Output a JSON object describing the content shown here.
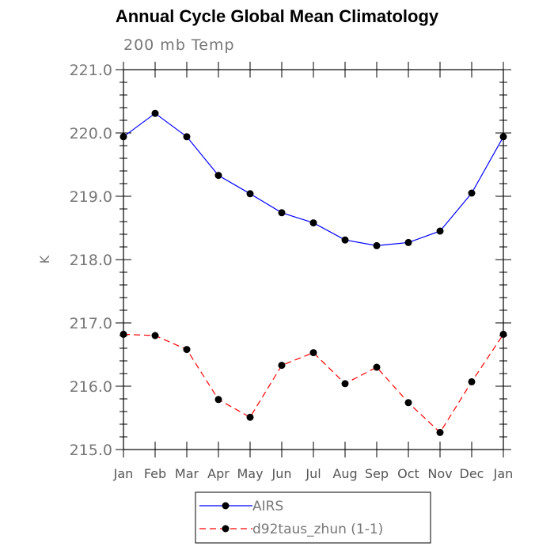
{
  "chart_data": {
    "type": "line",
    "title": "Annual Cycle Global Mean Climatology",
    "subtitle": "200 mb Temp",
    "xlabel": "",
    "ylabel": "K",
    "categories": [
      "Jan",
      "Feb",
      "Mar",
      "Apr",
      "May",
      "Jun",
      "Jul",
      "Aug",
      "Sep",
      "Oct",
      "Nov",
      "Dec",
      "Jan"
    ],
    "ylim": [
      215.0,
      221.0
    ],
    "yticks": [
      "215.0",
      "216.0",
      "217.0",
      "218.0",
      "219.0",
      "220.0",
      "221.0"
    ],
    "grid": false,
    "legend_position": "bottom-center",
    "series": [
      {
        "name": "AIRS",
        "color": "#0000ff",
        "style": "solid",
        "marker": "filled-circle",
        "values": [
          219.94,
          220.31,
          219.94,
          219.33,
          219.04,
          218.74,
          218.58,
          218.31,
          218.22,
          218.27,
          218.45,
          219.05,
          219.94
        ]
      },
      {
        "name": "d92taus_zhun (1-1)",
        "color": "#ff0000",
        "style": "dashed",
        "marker": "filled-circle",
        "values": [
          216.82,
          216.8,
          216.58,
          215.79,
          215.51,
          216.33,
          216.53,
          216.04,
          216.3,
          215.74,
          215.27,
          216.07,
          216.82
        ]
      }
    ]
  }
}
